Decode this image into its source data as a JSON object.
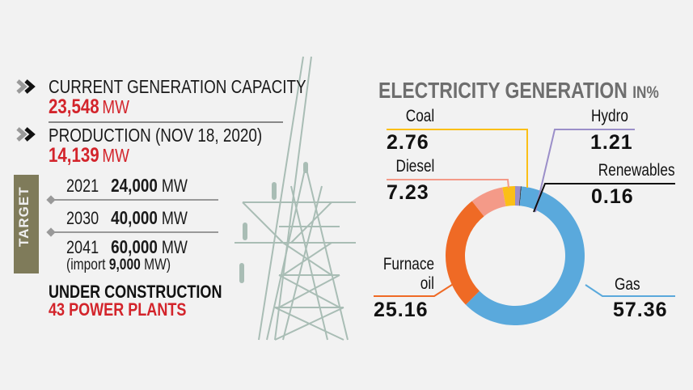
{
  "left": {
    "capacity": {
      "label": "CURRENT GENERATION CAPACITY",
      "value": "23,548",
      "unit": "MW"
    },
    "production": {
      "label": "PRODUCTION (NOV 18, 2020)",
      "value": "14,139",
      "unit": "MW"
    },
    "target": {
      "label": "TARGET",
      "items": [
        {
          "year": "2021",
          "value": "24,000",
          "unit": "MW"
        },
        {
          "year": "2030",
          "value": "40,000",
          "unit": "MW"
        },
        {
          "year": "2041",
          "value": "60,000",
          "unit": "MW"
        }
      ],
      "import_prefix": "(import",
      "import_value": "9,000",
      "import_suffix": "MW)"
    },
    "under_construction": {
      "label": "UNDER CONSTRUCTION",
      "value": "43 POWER PLANTS"
    }
  },
  "chart_data": {
    "type": "pie",
    "title": "ELECTRICITY GENERATION",
    "title_suffix": "IN%",
    "donut": true,
    "slices": [
      {
        "name": "Hydro",
        "value": 1.21,
        "color": "#9b8fc9"
      },
      {
        "name": "Renewables",
        "value": 0.16,
        "color": "#222222"
      },
      {
        "name": "Gas",
        "value": 57.36,
        "color": "#5aa9dc"
      },
      {
        "name": "Furnace oil",
        "value": 25.16,
        "color": "#ef6a25"
      },
      {
        "name": "Diesel",
        "value": 7.23,
        "color": "#f49a88"
      },
      {
        "name": "Coal",
        "value": 2.76,
        "color": "#fbbf17"
      }
    ],
    "labels": {
      "coal": {
        "name": "Coal",
        "value": "2.76"
      },
      "hydro": {
        "name": "Hydro",
        "value": "1.21"
      },
      "diesel": {
        "name": "Diesel",
        "value": "7.23"
      },
      "renewables": {
        "name": "Renewables",
        "value": "0.16"
      },
      "furnace": {
        "name1": "Furnace",
        "name2": "oil",
        "value": "25.16"
      },
      "gas": {
        "name": "Gas",
        "value": "57.36"
      }
    }
  }
}
